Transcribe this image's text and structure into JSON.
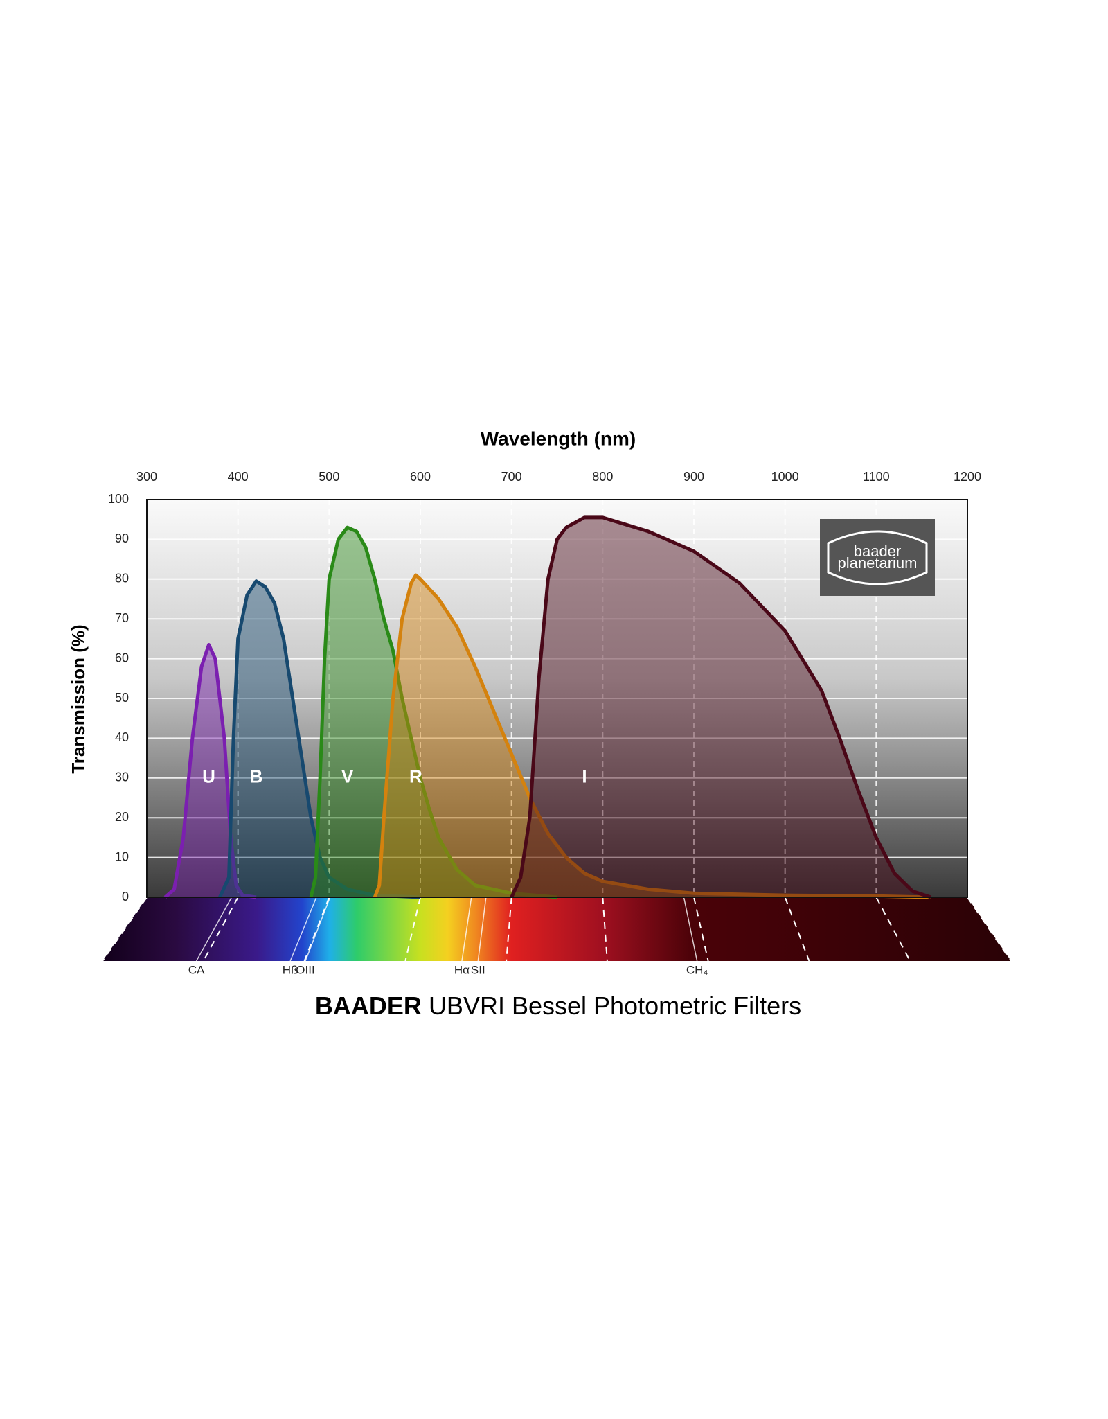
{
  "chart_data": {
    "type": "area",
    "title": "Wavelength (nm)",
    "ylabel": "Transmission (%)",
    "footer_bold": "BAADER",
    "footer": "UBVRI Bessel Photometric Filters",
    "logo": [
      "baader",
      "planetarium"
    ],
    "xlim": [
      300,
      1200
    ],
    "xticks": [
      300,
      400,
      500,
      600,
      700,
      800,
      900,
      1000,
      1100,
      1200
    ],
    "ylim": [
      0,
      100
    ],
    "yticks": [
      0,
      10,
      20,
      30,
      40,
      50,
      60,
      70,
      80,
      90,
      100
    ],
    "grid": true,
    "series": [
      {
        "name": "U",
        "color": "#7b1fb0",
        "x": [
          320,
          330,
          340,
          350,
          360,
          368,
          375,
          385,
          392,
          398,
          405,
          420
        ],
        "values": [
          0,
          2,
          15,
          40,
          58,
          63.5,
          60,
          40,
          15,
          3,
          0.5,
          0
        ]
      },
      {
        "name": "B",
        "color": "#17496f",
        "x": [
          380,
          390,
          395,
          400,
          410,
          420,
          430,
          440,
          450,
          460,
          470,
          480,
          490,
          500,
          520,
          550,
          600
        ],
        "values": [
          0,
          5,
          40,
          65,
          76,
          79.5,
          78,
          74,
          65,
          50,
          35,
          20,
          10,
          5,
          2,
          0.5,
          0
        ]
      },
      {
        "name": "V",
        "color": "#2a8a18",
        "x": [
          480,
          485,
          490,
          495,
          500,
          510,
          520,
          530,
          540,
          550,
          560,
          570,
          580,
          590,
          600,
          610,
          620,
          640,
          660,
          700,
          750
        ],
        "values": [
          0,
          5,
          30,
          60,
          80,
          90,
          93,
          92,
          88,
          80,
          70,
          62,
          50,
          40,
          30,
          22,
          15,
          7,
          3,
          1,
          0
        ]
      },
      {
        "name": "R",
        "color": "#d4820e",
        "x": [
          550,
          555,
          560,
          570,
          580,
          590,
          595,
          600,
          620,
          640,
          660,
          680,
          700,
          720,
          740,
          760,
          780,
          800,
          850,
          900,
          1000,
          1100,
          1160
        ],
        "values": [
          0,
          3,
          20,
          50,
          70,
          79,
          81,
          80,
          75,
          68,
          58,
          47,
          36,
          25,
          16,
          10,
          6,
          4,
          2,
          1,
          0.5,
          0.3,
          0
        ]
      },
      {
        "name": "I",
        "color": "#4a0818",
        "x": [
          700,
          710,
          720,
          730,
          740,
          750,
          760,
          780,
          800,
          850,
          900,
          950,
          1000,
          1040,
          1060,
          1080,
          1100,
          1120,
          1140,
          1160
        ],
        "values": [
          0,
          5,
          20,
          55,
          80,
          90,
          93,
          95.5,
          95.5,
          92,
          87,
          79,
          67,
          52,
          40,
          27,
          15,
          6,
          1.5,
          0
        ]
      }
    ],
    "lines": [
      {
        "label": "CA",
        "x": 393
      },
      {
        "label": "Hß",
        "x": 486
      },
      {
        "label": "OIII",
        "x": 501
      },
      {
        "label": "Hα",
        "x": 656
      },
      {
        "label": "SII",
        "x": 672
      },
      {
        "label": "CH₄",
        "x": 889
      }
    ]
  }
}
